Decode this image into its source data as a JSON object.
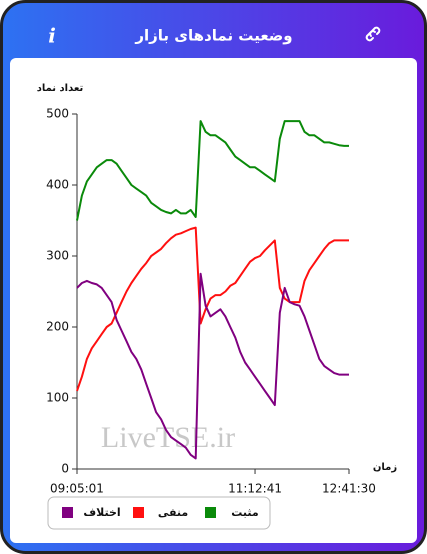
{
  "header": {
    "title": "وضعیت نمادهای بازار",
    "info_icon": "i"
  },
  "chart_data": {
    "type": "line",
    "y_label": "تعداد نماد",
    "x_label": "زمان",
    "watermark": "LiveTSE.ir",
    "categories": [
      "09:05:01",
      null,
      null,
      null,
      null,
      null,
      null,
      null,
      null,
      null,
      null,
      null,
      null,
      null,
      null,
      null,
      null,
      null,
      null,
      null,
      null,
      null,
      null,
      null,
      null,
      null,
      null,
      null,
      null,
      null,
      null,
      null,
      null,
      null,
      null,
      null,
      "11:12:41",
      null,
      null,
      null,
      null,
      null,
      null,
      null,
      null,
      null,
      null,
      null,
      null,
      null,
      null,
      null,
      null,
      null,
      null,
      "12:41:30"
    ],
    "series": [
      {
        "name": "مثبت",
        "color": "#0a8a0a",
        "values": [
          350,
          385,
          405,
          415,
          425,
          430,
          435,
          435,
          430,
          420,
          410,
          400,
          395,
          390,
          385,
          375,
          370,
          365,
          362,
          360,
          365,
          360,
          360,
          365,
          355,
          490,
          475,
          470,
          470,
          465,
          460,
          450,
          440,
          435,
          430,
          425,
          425,
          420,
          415,
          410,
          405,
          465,
          490,
          490,
          490,
          490,
          475,
          470,
          470,
          465,
          460,
          460,
          458,
          456,
          455,
          455
        ]
      },
      {
        "name": "منفی",
        "color": "#ff1010",
        "values": [
          110,
          130,
          155,
          170,
          180,
          190,
          200,
          205,
          220,
          235,
          250,
          262,
          272,
          282,
          290,
          300,
          305,
          310,
          318,
          325,
          330,
          332,
          335,
          338,
          340,
          205,
          225,
          240,
          245,
          245,
          250,
          258,
          262,
          272,
          282,
          292,
          297,
          300,
          308,
          315,
          322,
          255,
          240,
          235,
          235,
          235,
          265,
          280,
          290,
          300,
          310,
          318,
          322,
          322,
          322,
          322
        ]
      },
      {
        "name": "اختلاف",
        "color": "#800080",
        "values": [
          255,
          262,
          265,
          262,
          260,
          255,
          245,
          235,
          210,
          195,
          180,
          165,
          155,
          140,
          120,
          100,
          80,
          70,
          55,
          45,
          40,
          35,
          30,
          20,
          15,
          275,
          230,
          215,
          220,
          225,
          215,
          200,
          185,
          165,
          150,
          140,
          130,
          120,
          110,
          100,
          90,
          220,
          255,
          235,
          232,
          230,
          215,
          195,
          175,
          155,
          145,
          140,
          135,
          133,
          133,
          133
        ]
      }
    ],
    "ylim": [
      0,
      500
    ],
    "yticks": [
      0,
      100,
      200,
      300,
      400,
      500
    ]
  }
}
